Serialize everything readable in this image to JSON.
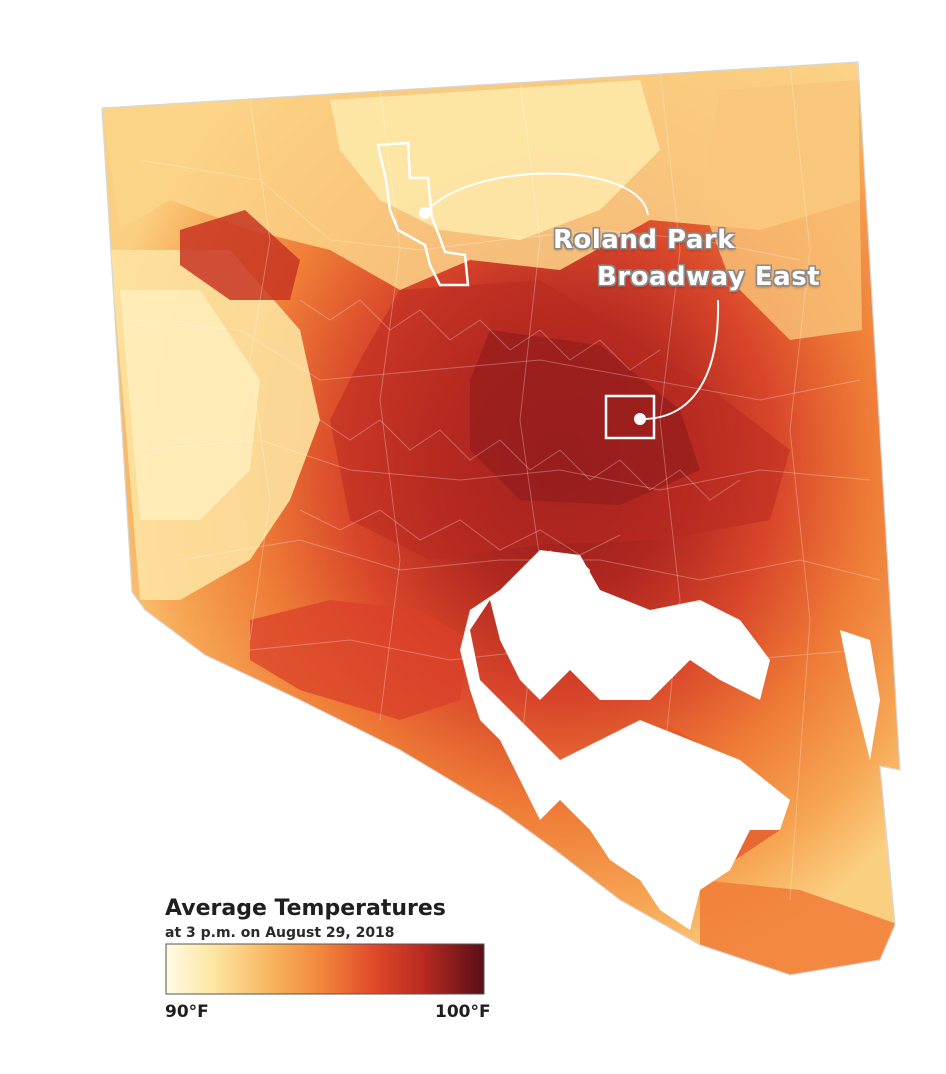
{
  "callouts": {
    "neighborhood_1": "Roland Park",
    "neighborhood_2": "Broadway East"
  },
  "legend": {
    "title": "Average Temperatures",
    "subtitle": "at 3 p.m. on August 29, 2018",
    "min_label": "90°F",
    "max_label": "100°F",
    "scale_colors": [
      "#fff9dc",
      "#fde6a0",
      "#f8b35a",
      "#f0823a",
      "#e4512a",
      "#c63022",
      "#8c1a1c",
      "#5e0f18"
    ]
  },
  "colors": {
    "pale_yellow": "#fde4a0",
    "light_orange": "#f7b35b",
    "orange": "#f08a3b",
    "red_orange": "#e75c2a",
    "red": "#cf3b22",
    "dark_red": "#a92320",
    "deep_red": "#7d151a",
    "highlight_outline": "#ffffff"
  },
  "water_color": "#ffffff"
}
